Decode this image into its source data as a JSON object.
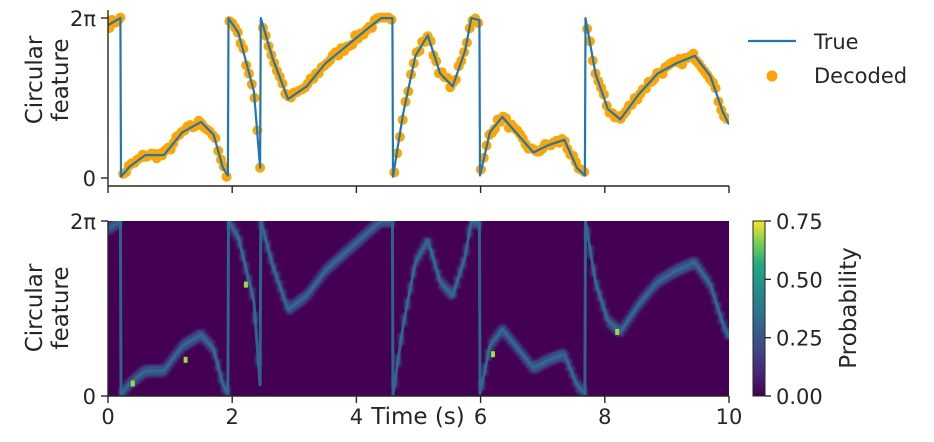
{
  "chart_data": [
    {
      "type": "line",
      "panel": "top",
      "ylabel": "Circular\nfeature",
      "xlim": [
        0,
        10
      ],
      "ylim": [
        0,
        6.2832
      ],
      "y_tick_labels": [
        "0",
        "2π"
      ],
      "y_ticks": [
        0,
        6.2832
      ],
      "x_ticks": [
        0,
        2,
        4,
        6,
        8,
        10
      ],
      "legend": {
        "placement": "outside-right",
        "entries": [
          {
            "label": "True",
            "kind": "line"
          },
          {
            "label": "Decoded",
            "kind": "scatter"
          }
        ]
      },
      "series": [
        {
          "name": "True",
          "kind": "line",
          "color": "#1f77b4",
          "x": [
            0.0,
            0.2,
            0.21,
            0.35,
            0.6,
            0.9,
            1.2,
            1.5,
            1.7,
            1.85,
            1.93,
            1.94,
            2.1,
            2.35,
            2.45,
            2.46,
            2.65,
            2.9,
            3.2,
            3.5,
            3.75,
            4.0,
            4.25,
            4.4,
            4.58,
            4.59,
            4.75,
            4.95,
            5.15,
            5.35,
            5.55,
            5.75,
            5.85,
            5.98,
            5.99,
            6.15,
            6.35,
            6.6,
            6.85,
            7.1,
            7.35,
            7.55,
            7.68,
            7.69,
            7.85,
            8.05,
            8.25,
            8.55,
            8.85,
            9.15,
            9.45,
            9.7,
            9.9,
            10.0
          ],
          "y": [
            6.0,
            6.28,
            0.05,
            0.45,
            0.9,
            0.9,
            1.8,
            2.2,
            1.7,
            0.4,
            0.1,
            6.28,
            5.7,
            3.4,
            0.4,
            6.28,
            4.7,
            3.1,
            3.6,
            4.5,
            5.0,
            5.5,
            6.0,
            6.28,
            6.28,
            0.05,
            2.5,
            4.8,
            5.6,
            4.1,
            3.6,
            5.0,
            6.28,
            6.2,
            0.1,
            1.8,
            2.4,
            1.7,
            1.0,
            1.3,
            1.5,
            0.4,
            0.1,
            6.28,
            4.1,
            2.7,
            2.3,
            3.3,
            4.1,
            4.5,
            4.8,
            4.0,
            2.6,
            2.1
          ]
        },
        {
          "name": "Decoded",
          "kind": "scatter",
          "color": "#ffa500"
        }
      ]
    },
    {
      "type": "heatmap",
      "panel": "bottom",
      "xlabel": "Time (s)",
      "ylabel": "Circular\nfeature",
      "xlim": [
        0,
        10
      ],
      "ylim": [
        0,
        6.2832
      ],
      "x_ticks": [
        0,
        2,
        4,
        6,
        8,
        10
      ],
      "x_tick_labels": [
        "0",
        "2",
        "4",
        "6",
        "8",
        "10"
      ],
      "y_ticks": [
        0,
        6.2832
      ],
      "y_tick_labels": [
        "0",
        "2π"
      ],
      "colormap": "viridis",
      "colorbar": {
        "label": "Probability",
        "range": [
          0,
          0.75
        ],
        "ticks": [
          0,
          0.25,
          0.5,
          0.75
        ],
        "tick_labels": [
          "0.00",
          "0.25",
          "0.50",
          "0.75"
        ]
      }
    }
  ]
}
